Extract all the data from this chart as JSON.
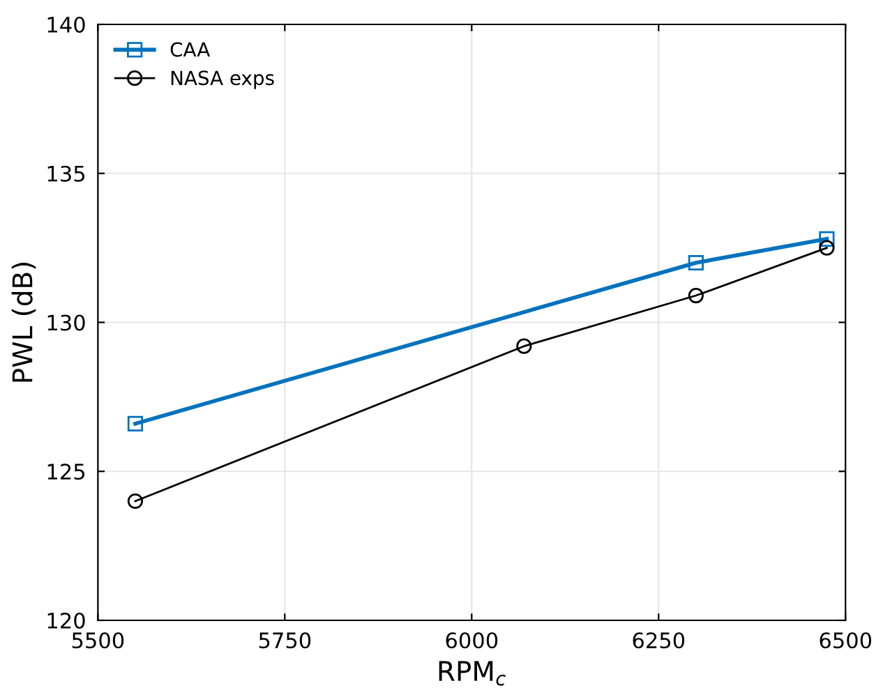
{
  "chart_data": {
    "type": "line",
    "xlabel": "RPM$_{c}$",
    "ylabel": "PWL (dB)",
    "xlim": [
      5500,
      6500
    ],
    "xticks": [
      5500,
      5750,
      6000,
      6250,
      6500
    ],
    "ylim": [
      120,
      140
    ],
    "yticks": [
      120,
      125,
      130,
      135,
      140
    ],
    "grid": true,
    "legend": "top left",
    "series": [
      {
        "name": "CAA",
        "color": "#0072bd",
        "marker": "square",
        "x": [
          5550,
          6300,
          6475
        ],
        "values": [
          126.6,
          132.0,
          132.8
        ]
      },
      {
        "name": "NASA exps",
        "color": "#000000",
        "marker": "circle",
        "x": [
          5550,
          6070,
          6300,
          6475
        ],
        "values": [
          124.0,
          129.2,
          130.9,
          132.5
        ]
      }
    ]
  }
}
